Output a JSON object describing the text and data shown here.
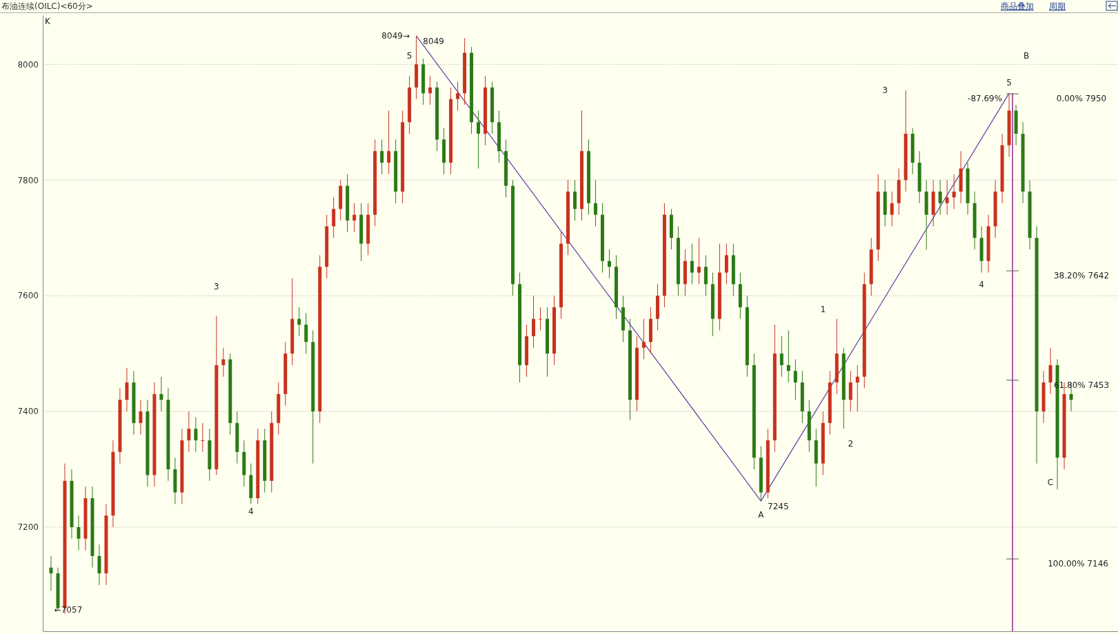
{
  "chart_data": {
    "type": "candlestick",
    "title": "布油连续(OILC)<60分>",
    "categories": [
      null,
      null,
      null,
      null,
      null,
      null,
      null,
      null,
      null,
      null,
      null,
      null,
      null,
      null,
      null,
      null,
      null,
      null,
      null,
      null,
      null,
      null,
      null,
      null,
      null,
      null,
      null,
      null,
      null,
      null,
      null,
      null,
      null,
      null,
      null,
      null,
      null,
      null,
      null,
      null,
      null,
      null,
      null,
      null,
      null,
      null,
      null,
      null,
      null,
      null,
      null,
      null,
      null,
      null,
      null,
      null,
      null,
      null,
      null,
      null,
      null,
      null,
      null,
      null,
      null,
      null,
      null,
      null,
      null,
      null,
      null,
      null,
      null,
      null,
      null,
      null,
      null,
      null,
      null,
      null,
      null,
      null,
      null,
      null,
      null,
      null,
      null,
      null,
      null,
      null,
      null,
      null,
      null,
      null,
      null,
      null,
      null,
      null,
      null,
      null,
      null,
      null,
      null,
      null,
      null,
      null,
      null,
      null,
      null,
      null,
      null,
      null,
      null,
      null,
      null,
      null,
      null,
      null,
      null,
      null,
      null,
      null,
      null,
      null,
      null,
      null,
      null,
      null,
      null,
      null,
      null,
      null,
      null,
      null,
      null,
      null,
      null,
      null,
      null,
      null,
      null,
      null,
      null,
      null,
      null,
      null,
      null,
      null,
      null
    ],
    "ohlc": [
      [
        7130,
        7150,
        7090,
        7120
      ],
      [
        7120,
        7130,
        7057,
        7060
      ],
      [
        7060,
        7310,
        7050,
        7280
      ],
      [
        7280,
        7300,
        7180,
        7200
      ],
      [
        7200,
        7220,
        7160,
        7180
      ],
      [
        7180,
        7270,
        7160,
        7250
      ],
      [
        7250,
        7270,
        7130,
        7150
      ],
      [
        7150,
        7170,
        7100,
        7120
      ],
      [
        7120,
        7240,
        7100,
        7220
      ],
      [
        7220,
        7350,
        7200,
        7330
      ],
      [
        7330,
        7440,
        7310,
        7420
      ],
      [
        7420,
        7475,
        7400,
        7450
      ],
      [
        7450,
        7470,
        7360,
        7380
      ],
      [
        7380,
        7420,
        7360,
        7400
      ],
      [
        7400,
        7420,
        7270,
        7290
      ],
      [
        7290,
        7450,
        7270,
        7430
      ],
      [
        7430,
        7460,
        7400,
        7420
      ],
      [
        7420,
        7440,
        7280,
        7300
      ],
      [
        7300,
        7320,
        7240,
        7260
      ],
      [
        7260,
        7370,
        7240,
        7350
      ],
      [
        7350,
        7400,
        7330,
        7370
      ],
      [
        7370,
        7390,
        7330,
        7350
      ],
      [
        7350,
        7380,
        7330,
        7350
      ],
      [
        7350,
        7370,
        7280,
        7300
      ],
      [
        7300,
        7565,
        7290,
        7480
      ],
      [
        7480,
        7510,
        7460,
        7490
      ],
      [
        7490,
        7500,
        7360,
        7380
      ],
      [
        7380,
        7400,
        7310,
        7330
      ],
      [
        7330,
        7350,
        7270,
        7290
      ],
      [
        7290,
        7310,
        7240,
        7250
      ],
      [
        7250,
        7370,
        7240,
        7350
      ],
      [
        7350,
        7370,
        7260,
        7280
      ],
      [
        7280,
        7400,
        7260,
        7380
      ],
      [
        7380,
        7450,
        7360,
        7430
      ],
      [
        7430,
        7520,
        7410,
        7500
      ],
      [
        7500,
        7630,
        7480,
        7560
      ],
      [
        7560,
        7580,
        7530,
        7550
      ],
      [
        7550,
        7570,
        7500,
        7520
      ],
      [
        7520,
        7540,
        7310,
        7400
      ],
      [
        7400,
        7670,
        7380,
        7650
      ],
      [
        7650,
        7740,
        7630,
        7720
      ],
      [
        7720,
        7770,
        7700,
        7750
      ],
      [
        7750,
        7800,
        7730,
        7790
      ],
      [
        7790,
        7810,
        7710,
        7730
      ],
      [
        7730,
        7760,
        7710,
        7740
      ],
      [
        7740,
        7760,
        7660,
        7690
      ],
      [
        7690,
        7760,
        7670,
        7740
      ],
      [
        7740,
        7870,
        7720,
        7850
      ],
      [
        7850,
        7870,
        7810,
        7830
      ],
      [
        7830,
        7920,
        7810,
        7850
      ],
      [
        7850,
        7870,
        7760,
        7780
      ],
      [
        7780,
        7920,
        7760,
        7900
      ],
      [
        7900,
        7980,
        7880,
        7960
      ],
      [
        7960,
        8049,
        7940,
        8000
      ],
      [
        8000,
        8010,
        7930,
        7950
      ],
      [
        7950,
        7980,
        7930,
        7960
      ],
      [
        7960,
        7970,
        7850,
        7870
      ],
      [
        7870,
        7890,
        7810,
        7830
      ],
      [
        7830,
        7960,
        7810,
        7940
      ],
      [
        7940,
        7970,
        7920,
        7950
      ],
      [
        7950,
        8045,
        7930,
        8020
      ],
      [
        8020,
        8030,
        7880,
        7900
      ],
      [
        7900,
        7920,
        7820,
        7880
      ],
      [
        7880,
        7980,
        7860,
        7960
      ],
      [
        7960,
        7970,
        7880,
        7900
      ],
      [
        7900,
        7920,
        7830,
        7850
      ],
      [
        7850,
        7870,
        7770,
        7790
      ],
      [
        7790,
        7800,
        7600,
        7620
      ],
      [
        7620,
        7640,
        7450,
        7480
      ],
      [
        7480,
        7550,
        7460,
        7530
      ],
      [
        7530,
        7600,
        7510,
        7560
      ],
      [
        7560,
        7580,
        7540,
        7560
      ],
      [
        7560,
        7580,
        7460,
        7500
      ],
      [
        7500,
        7600,
        7480,
        7580
      ],
      [
        7580,
        7710,
        7560,
        7690
      ],
      [
        7690,
        7800,
        7670,
        7780
      ],
      [
        7780,
        7800,
        7730,
        7750
      ],
      [
        7750,
        7920,
        7730,
        7850
      ],
      [
        7850,
        7870,
        7740,
        7760
      ],
      [
        7760,
        7800,
        7720,
        7740
      ],
      [
        7740,
        7760,
        7640,
        7660
      ],
      [
        7660,
        7680,
        7630,
        7650
      ],
      [
        7650,
        7670,
        7560,
        7580
      ],
      [
        7580,
        7600,
        7520,
        7540
      ],
      [
        7540,
        7560,
        7385,
        7420
      ],
      [
        7420,
        7530,
        7400,
        7510
      ],
      [
        7510,
        7560,
        7490,
        7520
      ],
      [
        7520,
        7580,
        7500,
        7560
      ],
      [
        7560,
        7620,
        7540,
        7600
      ],
      [
        7600,
        7760,
        7580,
        7740
      ],
      [
        7740,
        7750,
        7680,
        7700
      ],
      [
        7700,
        7720,
        7600,
        7620
      ],
      [
        7620,
        7680,
        7600,
        7660
      ],
      [
        7660,
        7690,
        7620,
        7640
      ],
      [
        7640,
        7700,
        7620,
        7650
      ],
      [
        7650,
        7670,
        7600,
        7620
      ],
      [
        7620,
        7640,
        7530,
        7560
      ],
      [
        7560,
        7690,
        7540,
        7640
      ],
      [
        7640,
        7690,
        7620,
        7670
      ],
      [
        7670,
        7690,
        7600,
        7620
      ],
      [
        7620,
        7640,
        7560,
        7580
      ],
      [
        7580,
        7600,
        7460,
        7480
      ],
      [
        7480,
        7500,
        7300,
        7320
      ],
      [
        7320,
        7340,
        7245,
        7260
      ],
      [
        7260,
        7370,
        7250,
        7350
      ],
      [
        7350,
        7550,
        7330,
        7500
      ],
      [
        7500,
        7530,
        7460,
        7480
      ],
      [
        7480,
        7540,
        7450,
        7470
      ],
      [
        7470,
        7490,
        7420,
        7450
      ],
      [
        7450,
        7470,
        7380,
        7400
      ],
      [
        7400,
        7420,
        7330,
        7350
      ],
      [
        7350,
        7370,
        7270,
        7310
      ],
      [
        7310,
        7400,
        7290,
        7380
      ],
      [
        7380,
        7470,
        7360,
        7450
      ],
      [
        7450,
        7560,
        7430,
        7500
      ],
      [
        7500,
        7510,
        7370,
        7420
      ],
      [
        7420,
        7470,
        7400,
        7450
      ],
      [
        7450,
        7480,
        7400,
        7460
      ],
      [
        7460,
        7640,
        7440,
        7620
      ],
      [
        7620,
        7700,
        7600,
        7680
      ],
      [
        7680,
        7810,
        7660,
        7780
      ],
      [
        7780,
        7800,
        7720,
        7740
      ],
      [
        7740,
        7780,
        7720,
        7760
      ],
      [
        7760,
        7820,
        7740,
        7800
      ],
      [
        7800,
        7955,
        7780,
        7880
      ],
      [
        7880,
        7890,
        7810,
        7830
      ],
      [
        7830,
        7850,
        7760,
        7780
      ],
      [
        7780,
        7800,
        7680,
        7740
      ],
      [
        7740,
        7800,
        7720,
        7780
      ],
      [
        7780,
        7800,
        7740,
        7760
      ],
      [
        7760,
        7800,
        7740,
        7770
      ],
      [
        7770,
        7810,
        7750,
        7780
      ],
      [
        7780,
        7850,
        7760,
        7820
      ],
      [
        7820,
        7830,
        7740,
        7760
      ],
      [
        7760,
        7780,
        7680,
        7700
      ],
      [
        7700,
        7720,
        7640,
        7660
      ],
      [
        7660,
        7740,
        7640,
        7720
      ],
      [
        7720,
        7800,
        7700,
        7780
      ],
      [
        7780,
        7880,
        7760,
        7860
      ],
      [
        7860,
        7950,
        7840,
        7920
      ],
      [
        7920,
        7930,
        7860,
        7880
      ],
      [
        7880,
        7900,
        7760,
        7780
      ],
      [
        7780,
        7800,
        7680,
        7700
      ],
      [
        7700,
        7720,
        7310,
        7400
      ],
      [
        7400,
        7470,
        7380,
        7450
      ],
      [
        7450,
        7510,
        7430,
        7480
      ],
      [
        7480,
        7490,
        7265,
        7320
      ],
      [
        7320,
        7450,
        7300,
        7430
      ],
      [
        7430,
        7450,
        7400,
        7420
      ]
    ],
    "series": [
      {
        "type": "line",
        "color": "#5b3fa0",
        "values": [
          null,
          null,
          null,
          null,
          null,
          null,
          null,
          null,
          null,
          null,
          null,
          null,
          null,
          null,
          null,
          null,
          null,
          null,
          null,
          null,
          null,
          null,
          null,
          null,
          null,
          null,
          null,
          null,
          null,
          null,
          null,
          null,
          null,
          null,
          null,
          null,
          null,
          null,
          null,
          null,
          null,
          null,
          null,
          null,
          null,
          null,
          null,
          null,
          null,
          null,
          null,
          null,
          null,
          8049,
          null,
          null,
          null,
          null,
          null,
          null,
          null,
          null,
          null,
          null,
          null,
          null,
          null,
          null,
          null,
          null,
          null,
          null,
          null,
          null,
          null,
          null,
          null,
          null,
          null,
          null,
          null,
          null,
          null,
          null,
          null,
          null,
          null,
          null,
          null,
          null,
          null,
          null,
          null,
          null,
          null,
          null,
          null,
          null,
          null,
          null,
          null,
          null,
          null,
          7245,
          null,
          null,
          null,
          null,
          null,
          null,
          null,
          null,
          null,
          null,
          null,
          null,
          null,
          null,
          null,
          null,
          null,
          null,
          null,
          null,
          null,
          null,
          null,
          null,
          null,
          null,
          null,
          null,
          null,
          null,
          null,
          null,
          null,
          null,
          null,
          7950,
          null,
          null,
          null,
          null,
          null,
          null,
          null,
          null,
          null
        ]
      }
    ],
    "ylim": [
      7020,
      8085
    ],
    "yticks": [
      7200,
      7400,
      7600,
      7800,
      8000
    ],
    "tick_labels": "y",
    "grid": "y",
    "annotations": [
      "商品叠加",
      "周期",
      "K",
      "←7057",
      "8049→",
      "8049",
      "5",
      "3",
      "4",
      "A",
      "7245",
      "1",
      "2",
      "3",
      "4",
      "5",
      "B",
      "C",
      "-87.69%",
      "0.00%   7950",
      "38.20%   7642",
      "61.80%   7453",
      "100.00%   7146"
    ]
  }
}
